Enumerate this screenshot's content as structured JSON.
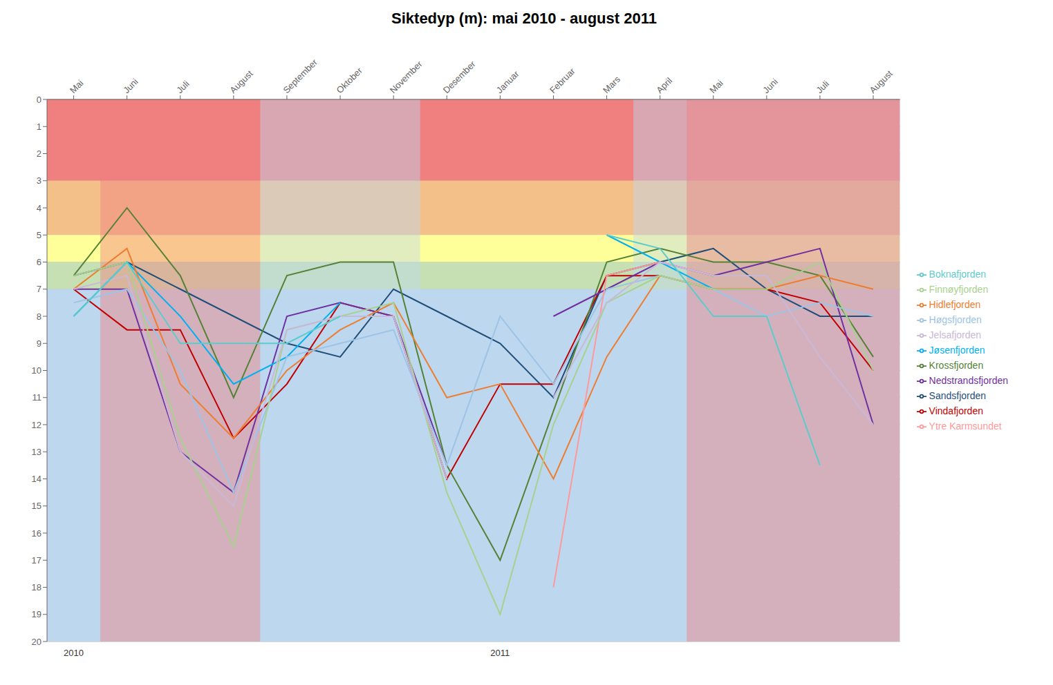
{
  "chart_data": {
    "type": "line",
    "title": "Siktedyp (m): mai 2010 - august 2011",
    "categories": [
      "Mai",
      "Juni",
      "Juli",
      "August",
      "September",
      "Oktober",
      "November",
      "Desember",
      "Januar",
      "Februar",
      "Mars",
      "April",
      "Mai",
      "Juni",
      "Juli",
      "August"
    ],
    "ylim": [
      0,
      20
    ],
    "yticks": [
      0,
      1,
      2,
      3,
      4,
      5,
      6,
      7,
      8,
      9,
      10,
      11,
      12,
      13,
      14,
      15,
      16,
      17,
      18,
      19,
      20
    ],
    "reversed_y": true,
    "grid": true,
    "legend": "right",
    "background_bands": [
      {
        "ymin": 0,
        "ymax": 3,
        "color": "#F08080"
      },
      {
        "ymin": 3,
        "ymax": 5,
        "color": "#F4C08A"
      },
      {
        "ymin": 5,
        "ymax": 6,
        "color": "#FFFF99"
      },
      {
        "ymin": 6,
        "ymax": 7,
        "color": "#C6E0B4"
      },
      {
        "ymin": 7,
        "ymax": 20,
        "color": "#BDD7EE"
      }
    ],
    "column_bands": [
      {
        "first": 11,
        "last": 15,
        "color": "#BDD7EE"
      },
      {
        "first": 1,
        "last": 3,
        "color": "#F08080"
      },
      {
        "first": 4,
        "last": 6,
        "color": "#BDD7EE"
      },
      {
        "first": 12,
        "last": 15,
        "color": "#F08080"
      }
    ],
    "annotations": [
      {
        "text": "2010",
        "index": 0
      },
      {
        "text": "2011",
        "index": 8
      }
    ],
    "series": [
      {
        "name": "Sandsfjorden",
        "color": "#1F4E79",
        "values": [
          6.5,
          6.0,
          7.0,
          8.0,
          9.0,
          9.5,
          7.0,
          8.0,
          9.0,
          11.0,
          6.5,
          6.0,
          5.5,
          7.0,
          8.0,
          8.0
        ]
      },
      {
        "name": "Vindafjorden",
        "color": "#C00000",
        "values": [
          7.0,
          8.5,
          8.5,
          12.5,
          10.5,
          7.5,
          8.0,
          14.0,
          10.5,
          10.5,
          6.5,
          6.5,
          7.0,
          7.0,
          7.5,
          10.0
        ]
      },
      {
        "name": "Krossfjorden",
        "color": "#548235",
        "values": [
          6.5,
          4.0,
          6.5,
          11.0,
          6.5,
          6.0,
          6.0,
          13.5,
          17.0,
          11.5,
          6.0,
          5.5,
          6.0,
          6.0,
          6.5,
          9.5
        ]
      },
      {
        "name": "Nedstrandsfjorden",
        "color": "#7030A0",
        "values": [
          7.0,
          7.0,
          13.0,
          14.5,
          8.0,
          7.5,
          8.0,
          13.5,
          null,
          8.0,
          7.0,
          6.0,
          6.5,
          6.0,
          5.5,
          12.0
        ]
      },
      {
        "name": "Jøsenfjorden",
        "color": "#00B0F0",
        "values": [
          8.0,
          6.0,
          8.0,
          10.5,
          9.5,
          7.5,
          null,
          null,
          null,
          null,
          5.0,
          6.0,
          7.0,
          null,
          null,
          null
        ]
      },
      {
        "name": "Hidlefjorden",
        "color": "#ED7D31",
        "values": [
          7.0,
          5.5,
          10.5,
          12.5,
          10.0,
          8.5,
          7.5,
          11.0,
          10.5,
          14.0,
          9.5,
          6.5,
          7.0,
          7.0,
          6.5,
          7.0
        ]
      },
      {
        "name": "Høgsfjorden",
        "color": "#9DC3E6",
        "values": [
          7.5,
          7.0,
          10.0,
          14.5,
          9.5,
          9.0,
          8.5,
          13.5,
          8.0,
          10.5,
          7.0,
          6.5,
          7.0,
          8.0,
          7.5,
          8.0
        ]
      },
      {
        "name": "Ytre Karmsundet",
        "color": "#FF9999",
        "values": [
          null,
          null,
          null,
          null,
          null,
          null,
          null,
          null,
          null,
          18.0,
          6.5,
          6.0,
          6.5,
          null,
          null,
          null
        ]
      },
      {
        "name": "Finnøyfjorden",
        "color": "#A9D18E",
        "values": [
          6.5,
          6.0,
          12.5,
          16.5,
          8.5,
          8.0,
          7.5,
          14.5,
          19.0,
          12.0,
          7.5,
          6.5,
          7.0,
          7.0,
          6.0,
          10.0
        ]
      },
      {
        "name": "Jelsafjorden",
        "color": "#C9B8D8",
        "values": [
          7.0,
          6.5,
          13.0,
          15.0,
          8.5,
          8.0,
          8.0,
          14.0,
          null,
          11.0,
          7.5,
          6.0,
          6.5,
          6.5,
          9.5,
          12.0
        ]
      },
      {
        "name": "Boknafjorden",
        "color": "#5DCBCB",
        "values": [
          8.0,
          6.0,
          9.0,
          9.0,
          9.0,
          8.0,
          null,
          null,
          null,
          null,
          5.0,
          5.5,
          8.0,
          8.0,
          13.5,
          null
        ]
      }
    ]
  }
}
